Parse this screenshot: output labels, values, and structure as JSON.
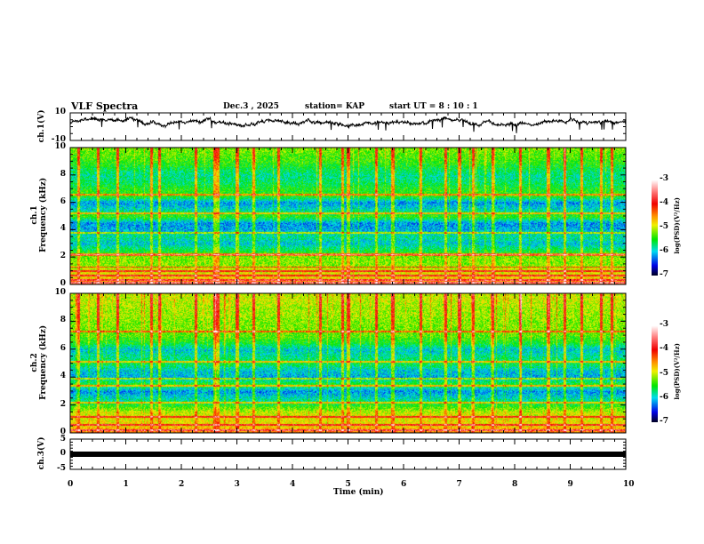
{
  "header": {
    "title": "VLF Spectra",
    "date": "Dec.3  , 2025",
    "station": "station= KAP",
    "start": "start  UT  =   8  : 10 : 1"
  },
  "chart_data": [
    {
      "type": "line",
      "name": "ch1-waveform",
      "ylabel": "ch.1(V)",
      "ylim": [
        -10,
        10
      ],
      "yticks": [
        "10",
        "-10"
      ],
      "xlim": [
        0,
        10
      ],
      "mean": 3,
      "amplitude": 3
    },
    {
      "type": "heatmap",
      "name": "ch1-spectrogram",
      "ylabel": "ch.1\nFrequency  (kHz)",
      "ylabel_top": "ch.1",
      "ylabel_bottom": "Frequency  (kHz)",
      "xlim": [
        0,
        10
      ],
      "ylim": [
        0,
        10
      ],
      "yticks": [
        "0",
        "2",
        "4",
        "6",
        "8",
        "10"
      ],
      "freq_profile_kHz_step": 0.5,
      "freq_profile_logPSD": [
        -4.3,
        -4.8,
        -4.9,
        -5.2,
        -5.2,
        -5.6,
        -6.0,
        -5.8,
        -6.1,
        -6.2,
        -5.4,
        -5.9,
        -6.2,
        -5.4,
        -5.5,
        -5.7,
        -5.8,
        -5.6,
        -5.4,
        -5.3,
        -5.2
      ],
      "lines_kHz": [
        0.15,
        0.35,
        0.7,
        1.0,
        1.3,
        2.2,
        2.25,
        3.8,
        5.2,
        6.6
      ],
      "spike_times_min": [
        0.15,
        0.5,
        0.85,
        1.45,
        1.6,
        2.25,
        2.6,
        2.65,
        3.0,
        3.3,
        3.75,
        4.5,
        4.9,
        5.0,
        5.5,
        5.8,
        6.3,
        6.75,
        7.0,
        7.25,
        7.6,
        8.1,
        8.6,
        8.9,
        9.2,
        9.55,
        9.75
      ]
    },
    {
      "type": "heatmap",
      "name": "ch2-spectrogram",
      "ylabel_top": "ch.2",
      "ylabel_bottom": "Frequency  (kHz)",
      "xlim": [
        0,
        10
      ],
      "ylim": [
        0,
        10
      ],
      "yticks": [
        "0",
        "2",
        "4",
        "6",
        "8",
        "10"
      ],
      "freq_profile_kHz_step": 0.5,
      "freq_profile_logPSD": [
        -4.4,
        -4.8,
        -4.9,
        -5.0,
        -5.5,
        -5.9,
        -6.2,
        -5.5,
        -6.1,
        -6.0,
        -5.6,
        -5.8,
        -6.0,
        -5.5,
        -5.3,
        -5.2,
        -5.2,
        -5.1,
        -5.1,
        -5.0,
        -5.0
      ],
      "lines_kHz": [
        0.2,
        0.6,
        1.2,
        2.2,
        3.4,
        3.9,
        5.1,
        7.3
      ],
      "spike_times_min": [
        0.15,
        0.5,
        0.85,
        1.45,
        1.6,
        2.25,
        2.6,
        2.65,
        3.0,
        3.3,
        3.75,
        4.5,
        4.9,
        5.0,
        5.5,
        5.8,
        6.3,
        6.75,
        7.0,
        7.25,
        7.6,
        8.1,
        8.6,
        8.9,
        9.2,
        9.55,
        9.75
      ]
    },
    {
      "type": "line",
      "name": "ch3-waveform",
      "ylabel": "ch.3(V)",
      "ylim": [
        -5,
        5
      ],
      "yticks": [
        "5",
        "0",
        "-5"
      ],
      "xlim": [
        0,
        10
      ],
      "mean": -1.5,
      "amplitude": 0.4,
      "xlabel": "Time  (min)",
      "xticks": [
        "0",
        "1",
        "2",
        "3",
        "4",
        "5",
        "6",
        "7",
        "8",
        "9",
        "10"
      ]
    },
    {
      "type": "colorbar",
      "label": "log(PSD)(V²/Hz)",
      "range": [
        -7,
        -3
      ],
      "ticks": [
        "-3",
        "-4",
        "-5",
        "-6",
        "-7"
      ]
    }
  ],
  "colors": {
    "axis": "#000000"
  }
}
